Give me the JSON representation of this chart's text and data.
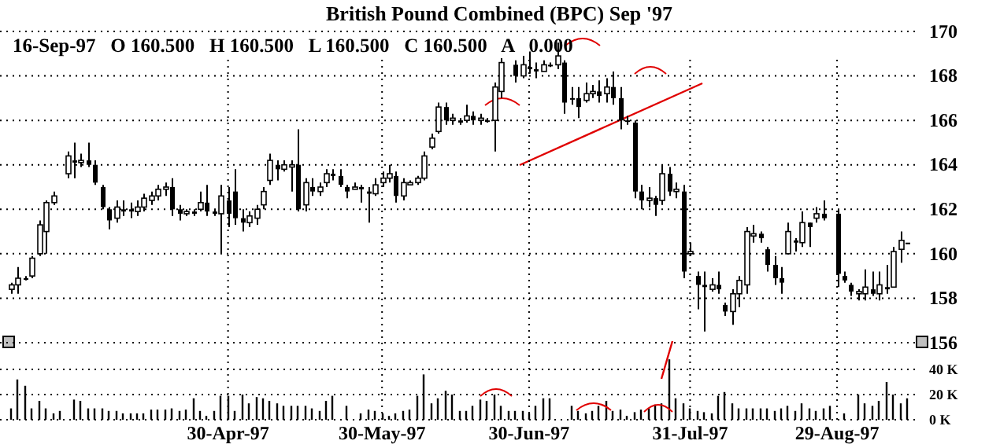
{
  "chart_data": [
    {
      "type": "candlestick",
      "title": "British Pound Combined (BPC) Sep '97",
      "subtitle": "16-Sep-97   O 160.500   H 160.500   L 160.500   C 160.500   A   0.000",
      "color": "#000000",
      "ylim": [
        156,
        170
      ],
      "yticks": [
        156,
        158,
        160,
        162,
        164,
        166,
        168,
        170
      ],
      "grid": true,
      "categories": [
        null,
        null,
        null,
        null,
        null,
        null,
        null,
        null,
        null,
        null,
        null,
        null,
        null,
        null,
        null,
        null,
        null,
        null,
        null,
        null,
        null,
        null,
        null,
        null,
        null,
        null,
        null,
        null,
        null,
        null,
        null,
        "30-Apr-97",
        null,
        null,
        null,
        null,
        null,
        null,
        null,
        null,
        null,
        null,
        null,
        null,
        null,
        null,
        null,
        null,
        null,
        null,
        null,
        null,
        null,
        "30-May-97",
        null,
        null,
        null,
        null,
        null,
        null,
        null,
        null,
        null,
        null,
        null,
        null,
        null,
        null,
        null,
        null,
        null,
        null,
        null,
        null,
        "30-Jun-97",
        null,
        null,
        null,
        null,
        null,
        null,
        null,
        null,
        null,
        null,
        null,
        null,
        null,
        null,
        null,
        null,
        null,
        null,
        null,
        null,
        null,
        null,
        "31-Jul-97",
        null,
        null,
        null,
        null,
        null,
        null,
        null,
        null,
        null,
        null,
        null,
        null,
        null,
        null,
        null,
        null,
        null,
        null,
        null,
        null,
        "29-Aug-97",
        null,
        null,
        null,
        null,
        null,
        null,
        null,
        null,
        null,
        null
      ],
      "ohlc": [
        [
          158.4,
          158.7,
          158.2,
          158.6
        ],
        [
          158.6,
          159.4,
          158.2,
          158.9
        ],
        [
          158.9,
          159.0,
          158.8,
          158.9
        ],
        [
          159.0,
          159.9,
          158.9,
          159.8
        ],
        [
          160.0,
          161.5,
          159.9,
          161.3
        ],
        [
          161.0,
          162.4,
          160.0,
          162.3
        ],
        [
          162.3,
          162.8,
          162.2,
          162.6
        ],
        null,
        [
          163.6,
          164.6,
          163.4,
          164.4
        ],
        [
          164.2,
          165.0,
          163.4,
          164.1
        ],
        [
          164.1,
          164.5,
          163.9,
          164.2
        ],
        [
          164.2,
          165.0,
          163.9,
          164.0
        ],
        [
          164.0,
          164.2,
          163.1,
          163.2
        ],
        [
          163.0,
          163.1,
          162.0,
          162.1
        ],
        [
          162.0,
          162.1,
          161.1,
          161.5
        ],
        [
          161.6,
          162.4,
          161.4,
          162.1
        ],
        [
          162.0,
          162.4,
          161.7,
          161.9
        ],
        [
          162.0,
          162.3,
          161.6,
          161.9
        ],
        [
          161.9,
          162.4,
          161.7,
          162.1
        ],
        [
          162.1,
          162.7,
          161.9,
          162.5
        ],
        [
          162.4,
          162.8,
          162.2,
          162.6
        ],
        [
          162.6,
          163.1,
          162.4,
          162.9
        ],
        [
          162.9,
          163.2,
          162.6,
          163.0
        ],
        [
          163.0,
          163.4,
          161.7,
          162.0
        ],
        [
          162.0,
          162.2,
          161.5,
          161.8
        ],
        [
          161.8,
          162.0,
          161.7,
          161.9
        ],
        [
          161.9,
          162.0,
          161.7,
          161.8
        ],
        [
          162.0,
          162.8,
          161.9,
          162.3
        ],
        [
          162.3,
          163.1,
          161.7,
          161.9
        ],
        [
          161.9,
          162.0,
          161.7,
          161.8
        ],
        [
          161.8,
          163.1,
          160.0,
          162.6
        ],
        [
          162.4,
          163.0,
          161.2,
          161.8
        ],
        [
          162.8,
          163.8,
          161.3,
          161.6
        ],
        [
          161.6,
          162.0,
          161.0,
          161.4
        ],
        [
          161.4,
          161.9,
          161.2,
          161.7
        ],
        [
          161.6,
          162.2,
          161.3,
          162.0
        ],
        [
          162.2,
          163.0,
          162.0,
          162.8
        ],
        [
          163.3,
          164.5,
          163.1,
          164.2
        ],
        [
          164.0,
          164.2,
          163.3,
          163.8
        ],
        [
          163.8,
          164.2,
          163.7,
          164.0
        ],
        [
          163.9,
          164.2,
          162.8,
          164.0
        ],
        [
          164.0,
          165.6,
          161.9,
          162.0
        ],
        [
          162.2,
          163.4,
          161.9,
          163.2
        ],
        [
          163.0,
          163.4,
          162.6,
          162.8
        ],
        [
          162.8,
          163.2,
          162.6,
          163.0
        ],
        [
          163.2,
          163.8,
          163.0,
          163.6
        ],
        [
          163.6,
          163.8,
          163.3,
          163.5
        ],
        [
          163.5,
          163.8,
          163.0,
          163.1
        ],
        [
          163.0,
          163.1,
          162.5,
          162.8
        ],
        [
          162.9,
          163.2,
          162.9,
          163.0
        ],
        [
          163.0,
          163.1,
          162.3,
          162.9
        ],
        [
          162.8,
          163.0,
          161.4,
          162.7
        ],
        [
          162.7,
          163.4,
          162.6,
          163.1
        ],
        [
          163.2,
          163.7,
          163.0,
          163.4
        ],
        [
          163.4,
          164.0,
          163.2,
          163.6
        ],
        [
          163.5,
          163.7,
          162.3,
          162.6
        ],
        [
          162.6,
          163.4,
          162.4,
          163.2
        ],
        [
          163.1,
          163.3,
          163.1,
          163.2
        ],
        [
          163.2,
          163.5,
          163.1,
          163.4
        ],
        [
          163.4,
          164.6,
          163.3,
          164.4
        ],
        [
          164.8,
          165.4,
          164.7,
          165.2
        ],
        [
          165.5,
          166.8,
          165.4,
          166.6
        ],
        [
          166.6,
          166.8,
          165.8,
          166.0
        ],
        [
          166.0,
          166.3,
          165.8,
          166.1
        ],
        [
          166.0,
          166.1,
          165.8,
          165.9
        ],
        [
          166.0,
          166.7,
          165.9,
          166.2
        ],
        [
          166.2,
          166.4,
          165.8,
          166.0
        ],
        [
          166.0,
          166.3,
          165.8,
          166.1
        ],
        [
          166.0,
          166.1,
          165.9,
          166.0
        ],
        [
          166.0,
          167.7,
          164.6,
          167.5
        ],
        [
          167.3,
          168.8,
          167.0,
          168.6
        ],
        null,
        [
          168.5,
          168.7,
          167.7,
          168.0
        ],
        [
          168.0,
          168.9,
          167.9,
          168.5
        ],
        [
          168.4,
          169.1,
          168.1,
          168.3
        ],
        [
          168.3,
          168.6,
          167.9,
          168.2
        ],
        [
          168.2,
          168.7,
          168.2,
          168.5
        ],
        [
          168.5,
          168.6,
          168.4,
          168.5
        ],
        [
          168.5,
          169.5,
          168.3,
          168.9
        ],
        [
          168.6,
          168.7,
          166.3,
          166.8
        ],
        [
          167.0,
          167.5,
          166.7,
          167.0
        ],
        [
          167.0,
          167.5,
          166.1,
          166.6
        ],
        [
          166.9,
          167.7,
          166.8,
          167.2
        ],
        [
          167.2,
          167.6,
          167.0,
          167.3
        ],
        [
          167.3,
          167.8,
          166.8,
          167.1
        ],
        [
          167.2,
          167.9,
          166.8,
          167.5
        ],
        [
          167.5,
          168.2,
          166.7,
          167.0
        ],
        [
          167.0,
          167.5,
          165.6,
          166.0
        ],
        [
          166.0,
          166.2,
          165.8,
          166.0
        ],
        [
          165.9,
          166.0,
          162.5,
          162.8
        ],
        [
          162.8,
          163.1,
          162.0,
          162.4
        ],
        [
          162.4,
          163.0,
          162.1,
          162.5
        ],
        [
          162.5,
          162.6,
          161.7,
          162.2
        ],
        [
          162.4,
          164.0,
          162.2,
          163.6
        ],
        [
          163.6,
          163.9,
          162.6,
          162.8
        ],
        [
          162.8,
          163.2,
          162.5,
          162.9
        ],
        [
          162.8,
          163.1,
          158.9,
          159.2
        ],
        [
          160.0,
          160.5,
          159.9,
          160.1
        ],
        [
          159.0,
          159.2,
          157.5,
          158.6
        ],
        [
          158.6,
          159.2,
          156.5,
          158.5
        ],
        [
          158.4,
          158.9,
          158.3,
          158.6
        ],
        [
          158.6,
          159.2,
          158.2,
          158.4
        ],
        [
          157.7,
          157.8,
          157.2,
          157.4
        ],
        [
          157.4,
          158.4,
          156.8,
          158.2
        ],
        [
          158.2,
          159.0,
          157.6,
          158.8
        ],
        [
          158.6,
          161.2,
          158.2,
          161.0
        ],
        [
          160.8,
          161.3,
          160.5,
          160.9
        ],
        [
          160.9,
          161.0,
          160.5,
          160.7
        ],
        [
          160.2,
          160.3,
          159.2,
          159.5
        ],
        [
          159.5,
          159.9,
          158.6,
          158.9
        ],
        [
          158.9,
          159.4,
          158.2,
          158.7
        ],
        [
          160.0,
          161.4,
          160.0,
          161.0
        ],
        [
          160.6,
          160.7,
          160.1,
          160.5
        ],
        [
          160.5,
          161.9,
          160.3,
          161.4
        ],
        [
          161.4,
          161.4,
          160.3,
          161.2
        ],
        [
          161.6,
          162.1,
          161.4,
          161.8
        ],
        [
          161.8,
          162.4,
          161.5,
          161.6
        ],
        null,
        [
          161.8,
          162.0,
          158.5,
          159.1
        ],
        [
          159.0,
          159.2,
          158.7,
          158.8
        ],
        [
          158.6,
          158.7,
          158.1,
          158.3
        ],
        [
          158.2,
          158.4,
          157.9,
          158.3
        ],
        [
          158.2,
          159.3,
          157.9,
          158.5
        ],
        [
          158.4,
          159.2,
          158.1,
          158.2
        ],
        [
          158.2,
          159.2,
          157.9,
          158.6
        ],
        [
          158.5,
          159.5,
          158.2,
          158.4
        ],
        [
          158.5,
          160.3,
          158.5,
          160.1
        ],
        [
          160.2,
          161.0,
          159.6,
          160.6
        ],
        [
          160.5,
          160.5,
          160.5,
          160.5
        ]
      ]
    },
    {
      "type": "bar",
      "color": "#000000",
      "ylim": [
        0,
        50
      ],
      "yticks": [
        {
          "value": 0,
          "label": "0 K"
        },
        {
          "value": 20,
          "label": "20 K"
        },
        {
          "value": 40,
          "label": "40 K"
        }
      ],
      "grid": "y",
      "tick_labels": "y",
      "categories": [
        null,
        null,
        null,
        null,
        null,
        null,
        null,
        null,
        null,
        null,
        null,
        null,
        null,
        null,
        null,
        null,
        null,
        null,
        null,
        null,
        null,
        null,
        null,
        null,
        null,
        null,
        null,
        null,
        null,
        null,
        null,
        null,
        null,
        null,
        null,
        null,
        null,
        null,
        null,
        null,
        null,
        null,
        null,
        null,
        null,
        null,
        null,
        null,
        null,
        null,
        null,
        null,
        null,
        null,
        null,
        null,
        null,
        null,
        null,
        null,
        null,
        null,
        null,
        null,
        null,
        null,
        null,
        null,
        null,
        null,
        null,
        null,
        null,
        null,
        null,
        null,
        null,
        null,
        null,
        null,
        null,
        null,
        null,
        null,
        null,
        null,
        null,
        null,
        null,
        null,
        null,
        null,
        null,
        null,
        null,
        null,
        null,
        null,
        null,
        null,
        null,
        null,
        null,
        null,
        null,
        null,
        null,
        null,
        null,
        null,
        null,
        null,
        null,
        null,
        null,
        null,
        null,
        null,
        null,
        null,
        null,
        null,
        null,
        null,
        null,
        null,
        null,
        null,
        null
      ],
      "values": [
        9,
        32,
        27,
        9,
        15,
        9,
        5,
        7,
        null,
        16,
        15,
        9,
        9,
        9,
        7,
        7,
        5,
        5,
        5,
        5,
        8,
        8,
        8,
        9,
        7,
        8,
        17,
        7,
        3,
        7,
        19,
        19,
        7,
        20,
        13,
        18,
        17,
        15,
        13,
        11,
        11,
        11,
        11,
        9,
        7,
        15,
        19,
        null,
        11,
        null,
        5,
        8,
        7,
        5,
        3,
        5,
        7,
        8,
        19,
        36,
        13,
        17,
        23,
        20,
        7,
        7,
        11,
        16,
        15,
        20,
        11,
        7,
        7,
        7,
        5,
        11,
        17,
        17,
        null,
        null,
        11,
        7,
        5,
        7,
        11,
        15,
        7,
        8,
        3,
        6,
        8,
        9,
        12,
        13,
        48,
        17,
        13,
        9,
        7,
        6,
        5,
        19,
        22,
        13,
        9,
        9,
        9,
        9,
        9,
        7,
        9,
        11,
        7,
        13,
        9,
        7,
        9,
        11,
        null,
        5,
        null,
        20,
        13,
        11,
        15,
        30,
        20,
        13,
        17
      ]
    }
  ]
}
